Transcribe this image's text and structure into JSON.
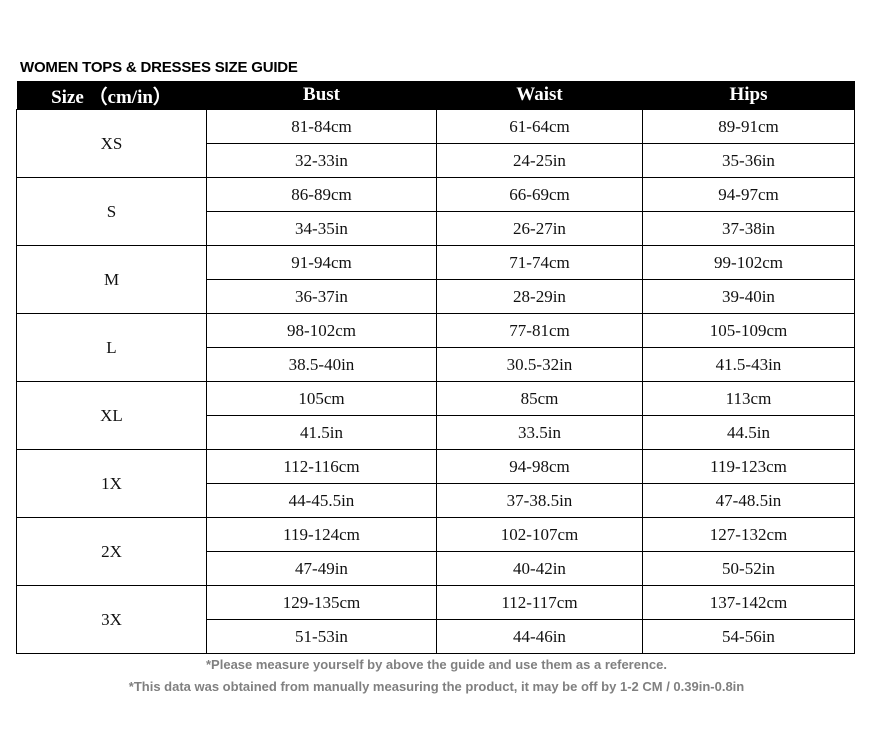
{
  "title": "WOMEN TOPS & DRESSES SIZE GUIDE",
  "headers": [
    "Size （cm/in）",
    "Bust",
    "Waist",
    "Hips"
  ],
  "rows": [
    {
      "size": "XS",
      "cm": [
        "81-84cm",
        "61-64cm",
        "89-91cm"
      ],
      "in": [
        "32-33in",
        "24-25in",
        "35-36in"
      ]
    },
    {
      "size": "S",
      "cm": [
        "86-89cm",
        "66-69cm",
        "94-97cm"
      ],
      "in": [
        "34-35in",
        "26-27in",
        "37-38in"
      ]
    },
    {
      "size": "M",
      "cm": [
        "91-94cm",
        "71-74cm",
        "99-102cm"
      ],
      "in": [
        "36-37in",
        "28-29in",
        "39-40in"
      ]
    },
    {
      "size": "L",
      "cm": [
        "98-102cm",
        "77-81cm",
        "105-109cm"
      ],
      "in": [
        "38.5-40in",
        "30.5-32in",
        "41.5-43in"
      ]
    },
    {
      "size": "XL",
      "cm": [
        "105cm",
        "85cm",
        "113cm"
      ],
      "in": [
        "41.5in",
        "33.5in",
        "44.5in"
      ]
    },
    {
      "size": "1X",
      "cm": [
        "112-116cm",
        "94-98cm",
        "119-123cm"
      ],
      "in": [
        "44-45.5in",
        "37-38.5in",
        "47-48.5in"
      ]
    },
    {
      "size": "2X",
      "cm": [
        "119-124cm",
        "102-107cm",
        "127-132cm"
      ],
      "in": [
        "47-49in",
        "40-42in",
        "50-52in"
      ]
    },
    {
      "size": "3X",
      "cm": [
        "129-135cm",
        "112-117cm",
        "137-142cm"
      ],
      "in": [
        "51-53in",
        "44-46in",
        "54-56in"
      ]
    }
  ],
  "notes": [
    "*Please measure yourself by above the guide and use them as a reference.",
    "*This data was obtained from manually measuring the product, it may be off by 1-2 CM / 0.39in-0.8in"
  ]
}
